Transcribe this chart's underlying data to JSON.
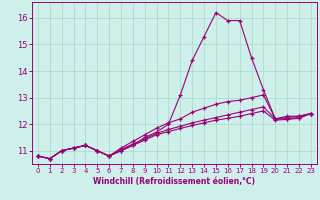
{
  "title": "",
  "xlabel": "Windchill (Refroidissement éolien,°C)",
  "ylabel": "",
  "bg_color": "#cff0ea",
  "line_color": "#990077",
  "grid_color": "#aaddcc",
  "xlim": [
    -0.5,
    23.5
  ],
  "ylim": [
    10.5,
    16.6
  ],
  "yticks": [
    11,
    12,
    13,
    14,
    15,
    16
  ],
  "xticks": [
    0,
    1,
    2,
    3,
    4,
    5,
    6,
    7,
    8,
    9,
    10,
    11,
    12,
    13,
    14,
    15,
    16,
    17,
    18,
    19,
    20,
    21,
    22,
    23
  ],
  "series": [
    [
      10.8,
      10.7,
      11.0,
      11.1,
      11.2,
      11.0,
      10.8,
      11.0,
      11.2,
      11.5,
      11.7,
      12.0,
      13.1,
      14.4,
      15.3,
      16.2,
      15.9,
      15.9,
      14.5,
      13.3,
      12.2,
      12.3,
      12.3,
      12.4
    ],
    [
      10.8,
      10.7,
      11.0,
      11.1,
      11.2,
      11.0,
      10.8,
      11.1,
      11.35,
      11.6,
      11.85,
      12.05,
      12.2,
      12.45,
      12.6,
      12.75,
      12.85,
      12.9,
      13.0,
      13.1,
      12.2,
      12.25,
      12.3,
      12.4
    ],
    [
      10.8,
      10.7,
      11.0,
      11.1,
      11.2,
      11.0,
      10.8,
      11.05,
      11.25,
      11.45,
      11.65,
      11.8,
      11.92,
      12.05,
      12.15,
      12.25,
      12.35,
      12.45,
      12.55,
      12.65,
      12.2,
      12.2,
      12.25,
      12.4
    ],
    [
      10.8,
      10.7,
      11.0,
      11.1,
      11.2,
      11.0,
      10.8,
      11.0,
      11.2,
      11.4,
      11.6,
      11.72,
      11.84,
      11.95,
      12.05,
      12.15,
      12.22,
      12.3,
      12.4,
      12.5,
      12.15,
      12.18,
      12.22,
      12.4
    ]
  ]
}
